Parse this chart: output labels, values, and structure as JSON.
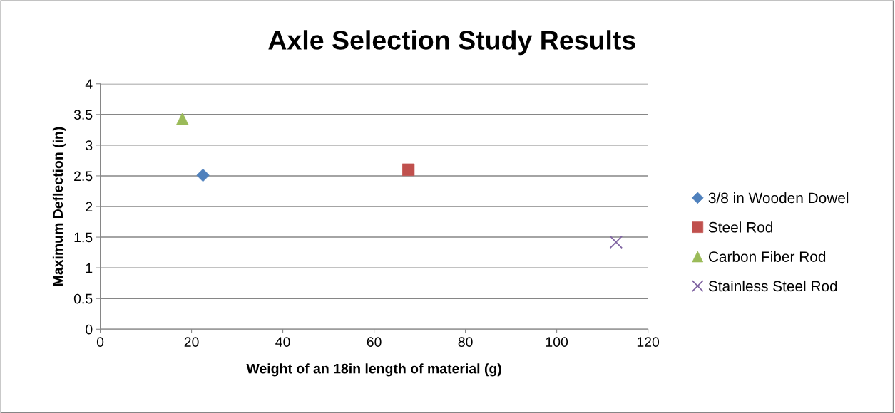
{
  "chart_data": {
    "type": "scatter",
    "title": "Axle Selection Study Results",
    "xlabel": "Weight of an 18in length of material (g)",
    "ylabel": "Maximum Deflection (in)",
    "series": [
      {
        "name": "3/8 in Wooden Dowel",
        "color": "#4f81bd",
        "marker": "diamond",
        "x": [
          22.5
        ],
        "values": [
          2.51
        ]
      },
      {
        "name": "Steel Rod",
        "color": "#c0504d",
        "marker": "square",
        "x": [
          67.5
        ],
        "values": [
          2.6
        ]
      },
      {
        "name": "Carbon Fiber Rod",
        "color": "#9bbb59",
        "marker": "triangle",
        "x": [
          18
        ],
        "values": [
          3.43
        ]
      },
      {
        "name": "Stainless Steel Rod",
        "color": "#8064a2",
        "marker": "cross",
        "x": [
          113
        ],
        "values": [
          1.42
        ]
      }
    ],
    "xlim": [
      0,
      120
    ],
    "xticks": [
      0,
      20,
      40,
      60,
      80,
      100,
      120
    ],
    "ylim": [
      0,
      4
    ],
    "yticks": [
      0,
      0.5,
      1,
      1.5,
      2,
      2.5,
      3,
      3.5,
      4
    ],
    "grid": "y",
    "legend": "right"
  }
}
